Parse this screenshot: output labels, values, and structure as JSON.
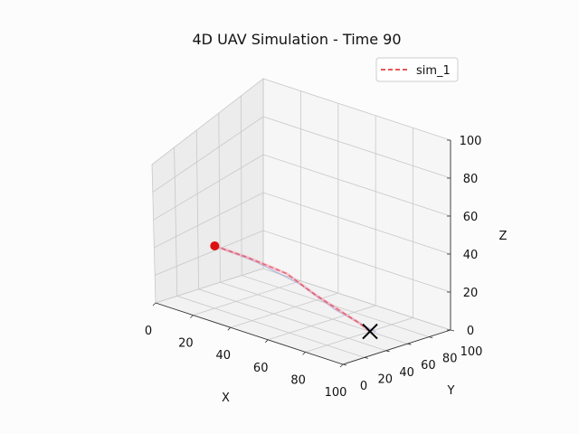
{
  "chart_data": {
    "type": "line",
    "projection": "3d",
    "title": "4D UAV Simulation - Time 90",
    "xlabel": "X",
    "ylabel": "Y",
    "zlabel": "Z",
    "xlim": [
      0,
      100
    ],
    "ylim": [
      0,
      100
    ],
    "zlim": [
      0,
      100
    ],
    "x_ticks": [
      "0",
      "20",
      "40",
      "60",
      "80",
      "100"
    ],
    "y_ticks": [
      "0",
      "20",
      "40",
      "60",
      "80",
      "100"
    ],
    "z_ticks": [
      "0",
      "20",
      "40",
      "60",
      "80",
      "100"
    ],
    "grid": true,
    "legend": {
      "placement": "top-right",
      "entries": [
        {
          "label": "sim_1",
          "style": "dashed",
          "color": "#dd2222"
        }
      ]
    },
    "series": [
      {
        "name": "sim_1",
        "style": "dashed",
        "color": "#dd2222",
        "points": [
          {
            "x": 6,
            "y": 45,
            "z": 28
          },
          {
            "x": 20,
            "y": 50,
            "z": 25
          },
          {
            "x": 38,
            "y": 56,
            "z": 20
          },
          {
            "x": 52,
            "y": 58,
            "z": 12
          },
          {
            "x": 64,
            "y": 59,
            "z": 7
          },
          {
            "x": 74,
            "y": 60,
            "z": 3
          },
          {
            "x": 80,
            "y": 60,
            "z": 0
          }
        ]
      }
    ],
    "reference_path": {
      "color": "#8899dd",
      "points": [
        {
          "x": 6,
          "y": 45,
          "z": 28
        },
        {
          "x": 24,
          "y": 52,
          "z": 23
        },
        {
          "x": 44,
          "y": 57,
          "z": 16
        },
        {
          "x": 62,
          "y": 60,
          "z": 6
        },
        {
          "x": 82,
          "y": 62,
          "z": 0
        }
      ]
    },
    "markers": [
      {
        "name": "current",
        "shape": "circle",
        "color": "#dd1111",
        "x": 6,
        "y": 45,
        "z": 28
      },
      {
        "name": "goal",
        "shape": "x",
        "color": "#000000",
        "x": 80,
        "y": 60,
        "z": 0
      }
    ]
  }
}
